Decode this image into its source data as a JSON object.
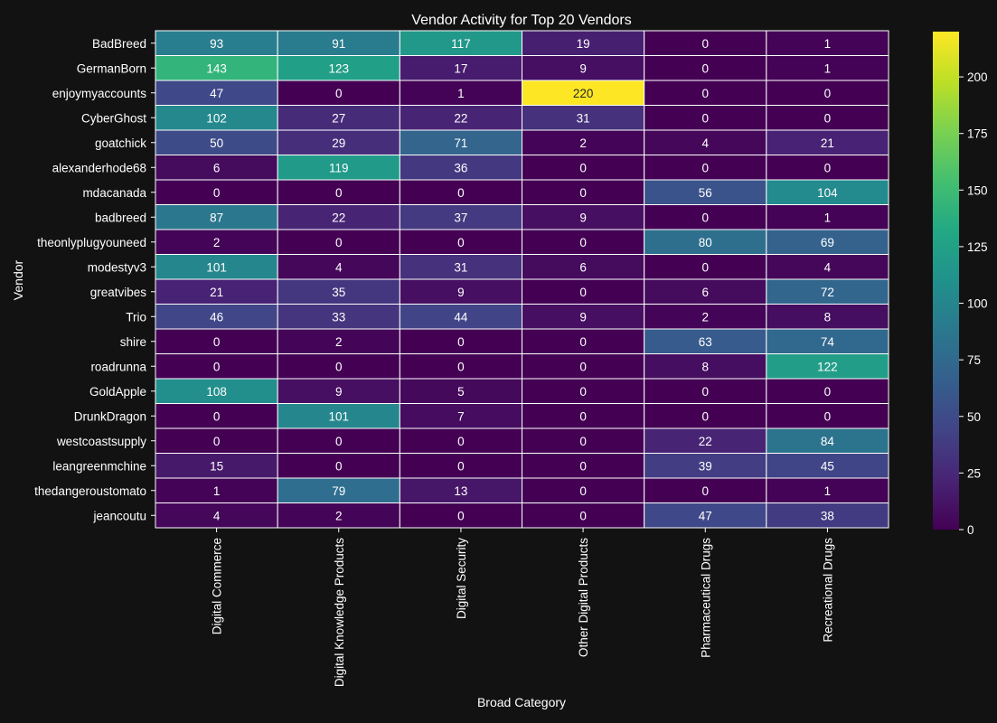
{
  "chart_data": {
    "type": "heatmap",
    "title": "Vendor Activity for Top 20 Vendors",
    "xlabel": "Broad Category",
    "ylabel": "Vendor",
    "x_categories": [
      "Digital Commerce",
      "Digital Knowledge Products",
      "Digital Security",
      "Other Digital Products",
      "Pharmaceutical Drugs",
      "Recreational Drugs"
    ],
    "y_categories": [
      "BadBreed",
      "GermanBorn",
      "enjoymyaccounts",
      "CyberGhost",
      "goatchick",
      "alexanderhode68",
      "mdacanada",
      "badbreed",
      "theonlyplugyouneed",
      "modestyv3",
      "greatvibes",
      "Trio",
      "shire",
      "roadrunna",
      "GoldApple",
      "DrunkDragon",
      "westcoastsupply",
      "leangreenmchine",
      "thedangeroustomato",
      "jeancoutu"
    ],
    "values": [
      [
        93,
        91,
        117,
        19,
        0,
        1
      ],
      [
        143,
        123,
        17,
        9,
        0,
        1
      ],
      [
        47,
        0,
        1,
        220,
        0,
        0
      ],
      [
        102,
        27,
        22,
        31,
        0,
        0
      ],
      [
        50,
        29,
        71,
        2,
        4,
        21
      ],
      [
        6,
        119,
        36,
        0,
        0,
        0
      ],
      [
        0,
        0,
        0,
        0,
        56,
        104
      ],
      [
        87,
        22,
        37,
        9,
        0,
        1
      ],
      [
        2,
        0,
        0,
        0,
        80,
        69
      ],
      [
        101,
        4,
        31,
        6,
        0,
        4
      ],
      [
        21,
        35,
        9,
        0,
        6,
        72
      ],
      [
        46,
        33,
        44,
        9,
        2,
        8
      ],
      [
        0,
        2,
        0,
        0,
        63,
        74
      ],
      [
        0,
        0,
        0,
        0,
        8,
        122
      ],
      [
        108,
        9,
        5,
        0,
        0,
        0
      ],
      [
        0,
        101,
        7,
        0,
        0,
        0
      ],
      [
        0,
        0,
        0,
        0,
        22,
        84
      ],
      [
        15,
        0,
        0,
        0,
        39,
        45
      ],
      [
        1,
        79,
        13,
        0,
        0,
        1
      ],
      [
        4,
        2,
        0,
        0,
        47,
        38
      ]
    ],
    "colorbar": {
      "colormap": "viridis",
      "range": [
        0,
        220
      ],
      "ticks": [
        0,
        25,
        50,
        75,
        100,
        125,
        150,
        175,
        200
      ]
    },
    "grid": true,
    "colors": {
      "background": "#121212",
      "cell_border": "#ffffff",
      "text": "#ffffff"
    }
  }
}
